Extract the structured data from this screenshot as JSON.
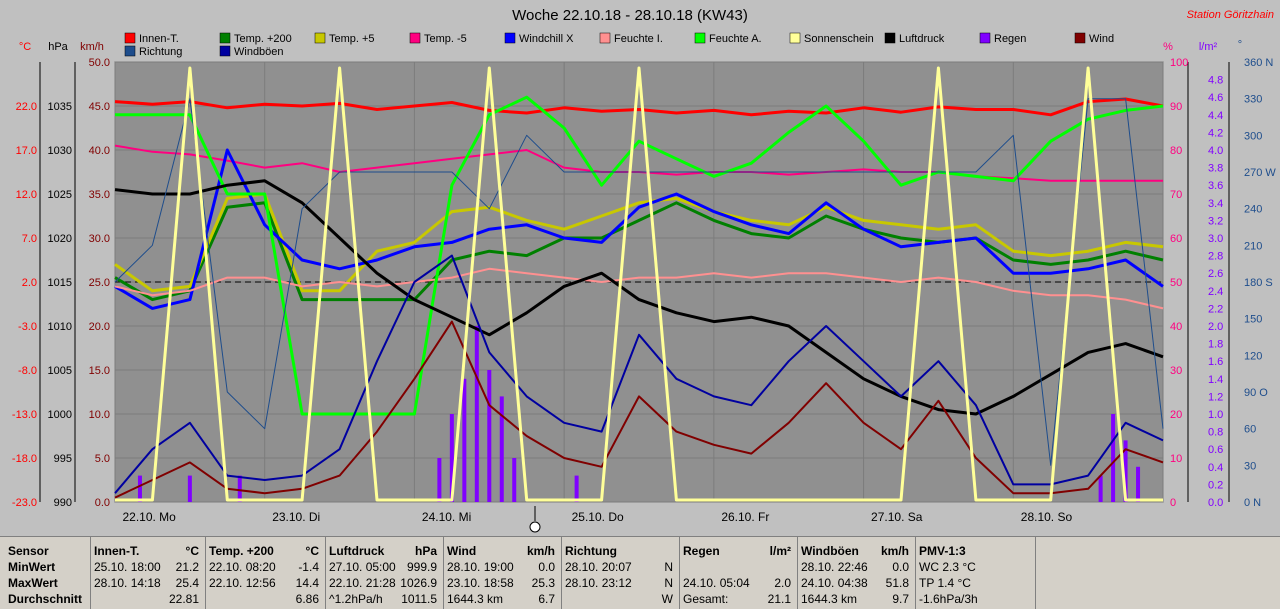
{
  "title": "Woche 22.10.18 - 28.10.18 (KW43)",
  "station": "Station Göritzhain",
  "legend": [
    {
      "label": "Innen-T.",
      "color": "#ff0000"
    },
    {
      "label": "Richtung",
      "color": "#1e4d8c"
    },
    {
      "label": "Temp. +200",
      "color": "#008000"
    },
    {
      "label": "Windböen",
      "color": "#0000a0"
    },
    {
      "label": "Temp. +5",
      "color": "#c8c800"
    },
    {
      "label": "Temp. -5",
      "color": "#ff0080"
    },
    {
      "label": "Windchill X",
      "color": "#0000ff"
    },
    {
      "label": "Feuchte I.",
      "color": "#ff9090"
    },
    {
      "label": "Feuchte A.",
      "color": "#00ff00"
    },
    {
      "label": "Sonnenschein",
      "color": "#ffff99"
    },
    {
      "label": "Luftdruck",
      "color": "#000000"
    },
    {
      "label": "Regen",
      "color": "#8000ff"
    },
    {
      "label": "Wind",
      "color": "#800000"
    }
  ],
  "axis_units": {
    "temp": "°C",
    "pressure": "hPa",
    "wind": "km/h",
    "humidity": "%",
    "rain": "l/m²",
    "direction": "°"
  },
  "axes": {
    "temp_ticks": [
      "22.0",
      "17.0",
      "12.0",
      "7.0",
      "2.0",
      "-3.0",
      "-8.0",
      "-13.0",
      "-18.0",
      "-23.0"
    ],
    "pressure_ticks": [
      "1035",
      "1030",
      "1025",
      "1020",
      "1015",
      "1010",
      "1005",
      "1000",
      "995",
      "990"
    ],
    "wind_ticks": [
      "50.0",
      "45.0",
      "40.0",
      "35.0",
      "30.0",
      "25.0",
      "20.0",
      "15.0",
      "10.0",
      "5.0",
      "0.0"
    ],
    "humidity_ticks": [
      "100",
      "90",
      "80",
      "70",
      "60",
      "50",
      "40",
      "30",
      "20",
      "10",
      "0"
    ],
    "rain_ticks": [
      "4.8",
      "4.6",
      "4.4",
      "4.2",
      "4.0",
      "3.8",
      "3.6",
      "3.4",
      "3.2",
      "3.0",
      "2.8",
      "2.6",
      "2.4",
      "2.2",
      "2.0",
      "1.8",
      "1.6",
      "1.4",
      "1.2",
      "1.0",
      "0.8",
      "0.6",
      "0.4",
      "0.2",
      "0.0"
    ],
    "direction_ticks": [
      "360 N",
      "330",
      "300",
      "270 W",
      "240",
      "210",
      "180 S",
      "150",
      "120",
      "90 O",
      "60",
      "30",
      "0 N"
    ],
    "days": [
      "22.10. Mo",
      "23.10. Di",
      "24.10. Mi",
      "25.10. Do",
      "26.10. Fr",
      "27.10. Sa",
      "28.10. So"
    ]
  },
  "chart_data": {
    "type": "line",
    "x": [
      "22.10. 00",
      "22.10. 06",
      "22.10. 12",
      "22.10. 18",
      "23.10. 00",
      "23.10. 06",
      "23.10. 12",
      "23.10. 18",
      "24.10. 00",
      "24.10. 06",
      "24.10. 12",
      "24.10. 18",
      "25.10. 00",
      "25.10. 06",
      "25.10. 12",
      "25.10. 18",
      "26.10. 00",
      "26.10. 06",
      "26.10. 12",
      "26.10. 18",
      "27.10. 00",
      "27.10. 06",
      "27.10. 12",
      "27.10. 18",
      "28.10. 00",
      "28.10. 06",
      "28.10. 12",
      "28.10. 18",
      "29.10. 00"
    ],
    "series": [
      {
        "name": "Innen-T.",
        "axis": "temp",
        "color": "#ff0000",
        "width": 3,
        "values": [
          22.5,
          22.2,
          22.5,
          21.8,
          22.2,
          22.0,
          22.3,
          21.6,
          22.0,
          22.4,
          21.5,
          21.2,
          21.8,
          21.4,
          21.6,
          21.2,
          21.5,
          21.0,
          21.4,
          21.2,
          21.8,
          21.3,
          21.9,
          21.6,
          21.6,
          21.0,
          22.5,
          22.8,
          22.0
        ]
      },
      {
        "name": "Temp. +200",
        "axis": "temp",
        "color": "#008000",
        "width": 3,
        "values": [
          2.5,
          0.0,
          1.0,
          10.5,
          11.0,
          0.0,
          0.0,
          0.0,
          0.0,
          4.5,
          5.5,
          5.0,
          7.0,
          7.0,
          9.0,
          11.0,
          9.0,
          7.5,
          7.0,
          9.5,
          8.0,
          7.0,
          6.5,
          7.0,
          4.5,
          4.0,
          4.5,
          5.5,
          4.5
        ]
      },
      {
        "name": "Temp. +5",
        "axis": "temp",
        "color": "#c8c800",
        "width": 3,
        "values": [
          4.0,
          1.0,
          1.5,
          11.5,
          12.0,
          1.0,
          1.0,
          5.5,
          6.5,
          10.0,
          10.5,
          9.0,
          8.0,
          9.5,
          11.0,
          11.5,
          10.0,
          9.0,
          8.5,
          10.5,
          9.0,
          8.5,
          8.0,
          8.5,
          5.5,
          5.0,
          5.5,
          6.5,
          6.0
        ]
      },
      {
        "name": "Temp. -5",
        "axis": "temp",
        "color": "#ff0080",
        "width": 2,
        "values": [
          17.5,
          16.8,
          16.5,
          15.8,
          15.0,
          15.5,
          14.5,
          15.0,
          15.5,
          16.0,
          16.5,
          17.0,
          15.0,
          14.5,
          14.5,
          14.2,
          14.5,
          14.5,
          14.2,
          14.5,
          14.8,
          14.5,
          14.5,
          14.0,
          13.8,
          13.5,
          13.5,
          13.5,
          13.5
        ]
      },
      {
        "name": "Windchill X",
        "axis": "temp",
        "color": "#0000ff",
        "width": 3,
        "values": [
          1.5,
          -1.0,
          0.0,
          17.0,
          8.5,
          4.5,
          3.5,
          4.5,
          6.0,
          6.5,
          8.0,
          8.5,
          7.0,
          6.5,
          10.5,
          12.0,
          10.0,
          8.5,
          7.5,
          11.0,
          8.0,
          6.0,
          6.5,
          7.0,
          3.0,
          3.0,
          3.5,
          4.5,
          1.5
        ]
      },
      {
        "name": "Feuchte I.",
        "axis": "humidity",
        "color": "#ff9090",
        "width": 2,
        "values": [
          49,
          47,
          48,
          51,
          51,
          49,
          50,
          49,
          50,
          51,
          53,
          52,
          51,
          50,
          51,
          51,
          52,
          51,
          52,
          52,
          51,
          50,
          51,
          50,
          48,
          47,
          47,
          46,
          44
        ]
      },
      {
        "name": "Feuchte A.",
        "axis": "humidity",
        "color": "#00ff00",
        "width": 3,
        "values": [
          88,
          88,
          88,
          70,
          70,
          20,
          20,
          20,
          20,
          72,
          88,
          92,
          85,
          72,
          82,
          78,
          74,
          77,
          84,
          90,
          82,
          72,
          75,
          74,
          73,
          82,
          87,
          89,
          90
        ]
      },
      {
        "name": "Luftdruck",
        "axis": "pressure",
        "color": "#000000",
        "width": 3,
        "values": [
          1025.5,
          1025.0,
          1025.0,
          1026.0,
          1026.5,
          1024.0,
          1020.0,
          1016.0,
          1013.0,
          1011.0,
          1009.0,
          1011.5,
          1014.5,
          1016.0,
          1013.0,
          1011.5,
          1010.5,
          1011.0,
          1010.0,
          1007.0,
          1004.0,
          1002.0,
          1000.5,
          1000.0,
          1002.0,
          1004.5,
          1007.0,
          1008.0,
          1006.5
        ]
      },
      {
        "name": "Wind",
        "axis": "wind",
        "color": "#800000",
        "width": 2,
        "values": [
          0.5,
          2.5,
          4.5,
          1.5,
          1.0,
          1.5,
          3.0,
          8.0,
          14.0,
          20.5,
          11.0,
          7.5,
          5.0,
          4.0,
          12.0,
          8.0,
          6.5,
          5.5,
          9.0,
          13.5,
          9.0,
          6.0,
          11.5,
          5.0,
          1.0,
          1.0,
          1.5,
          6.0,
          4.5
        ]
      },
      {
        "name": "Windböen",
        "axis": "wind",
        "color": "#0000a0",
        "width": 2,
        "values": [
          1.0,
          6.0,
          9.0,
          3.0,
          2.5,
          3.0,
          6.0,
          16.0,
          25.0,
          28.0,
          17.0,
          12.0,
          9.0,
          8.0,
          19.0,
          14.0,
          12.0,
          11.0,
          16.0,
          20.0,
          16.0,
          12.0,
          16.0,
          11.0,
          2.0,
          2.0,
          3.0,
          9.0,
          7.0
        ]
      },
      {
        "name": "Richtung",
        "axis": "direction",
        "color": "#1e4d8c",
        "width": 1,
        "values": [
          180,
          210,
          330,
          90,
          60,
          240,
          270,
          270,
          270,
          270,
          240,
          300,
          270,
          270,
          270,
          270,
          270,
          270,
          270,
          270,
          270,
          270,
          270,
          270,
          300,
          30,
          330,
          330,
          60
        ]
      },
      {
        "name": "Sonnenschein",
        "axis": "sun",
        "color": "#ffff99",
        "width": 3,
        "values": [
          0,
          0,
          1,
          0,
          0,
          0,
          1,
          0,
          0,
          0,
          1,
          0,
          0,
          0,
          1,
          0,
          0,
          0,
          0,
          0,
          0,
          0,
          1,
          0,
          0,
          0,
          1,
          0,
          0
        ]
      }
    ],
    "rain": {
      "axis": "rain",
      "color": "#8000ff",
      "x": [
        "22.10. 04",
        "22.10. 12",
        "22.10. 20",
        "24.10. 04",
        "24.10. 06",
        "24.10. 08",
        "24.10. 10",
        "24.10. 12",
        "24.10. 14",
        "24.10. 16",
        "25.10. 02",
        "28.10. 14",
        "28.10. 16",
        "28.10. 18",
        "28.10. 20"
      ],
      "values": [
        0.3,
        0.3,
        0.3,
        0.5,
        1.0,
        1.4,
        2.0,
        1.5,
        1.2,
        0.5,
        0.3,
        0.3,
        1.0,
        0.7,
        0.4
      ]
    },
    "ylim": {
      "temp": [
        -23.0,
        27.0
      ],
      "pressure": [
        990,
        1040
      ],
      "wind": [
        0,
        50
      ],
      "humidity": [
        0,
        100
      ],
      "rain": [
        0,
        5.0
      ],
      "direction": [
        0,
        360
      ]
    },
    "grid": true
  },
  "stats": {
    "labels": {
      "sensor": "Sensor",
      "min": "MinWert",
      "max": "MaxWert",
      "avg": "Durchschnitt"
    },
    "blocks": [
      {
        "name": "Innen-T.",
        "unit": "°C",
        "min_time": "25.10.  18:00",
        "min_val": "21.2",
        "max_time": "28.10.  14:18",
        "max_val": "25.4",
        "avg_time": "",
        "avg_val": "22.81"
      },
      {
        "name": "Temp. +200",
        "unit": "°C",
        "min_time": "22.10.  08:20",
        "min_val": "-1.4",
        "max_time": "22.10.  12:56",
        "max_val": "14.4",
        "avg_time": "",
        "avg_val": "6.86"
      },
      {
        "name": "Luftdruck",
        "unit": "hPa",
        "min_time": "27.10.  05:00",
        "min_val": "999.9",
        "max_time": "22.10.  21:28",
        "max_val": "1026.9",
        "avg_time": "^1.2hPa/h",
        "avg_val": "1011.5"
      },
      {
        "name": "Wind",
        "unit": "km/h",
        "min_time": "28.10.  19:00",
        "min_val": "0.0",
        "max_time": "23.10.  18:58",
        "max_val": "25.3",
        "avg_time": "1644.3 km",
        "avg_val": "6.7"
      },
      {
        "name": "Richtung",
        "unit": "",
        "min_time": "28.10.  20:07",
        "min_val": "N",
        "max_time": "28.10.  23:12",
        "max_val": "N",
        "avg_time": "",
        "avg_val": "W"
      },
      {
        "name": "Regen",
        "unit": "l/m²",
        "min_time": "",
        "min_val": "",
        "max_time": "24.10.  05:04",
        "max_val": "2.0",
        "avg_time": "Gesamt:",
        "avg_val": "21.1"
      },
      {
        "name": "Windböen",
        "unit": "km/h",
        "min_time": "28.10.  22:46",
        "min_val": "0.0",
        "max_time": "24.10.  04:38",
        "max_val": "51.8",
        "avg_time": "1644.3 km",
        "avg_val": "9.7"
      },
      {
        "name": "PMV-1:3",
        "unit": "",
        "min_time": "WC 2.3 °C",
        "min_val": "",
        "max_time": "TP 1.4 °C",
        "max_val": "",
        "avg_time": "-1.6hPa/3h",
        "avg_val": ""
      }
    ]
  }
}
